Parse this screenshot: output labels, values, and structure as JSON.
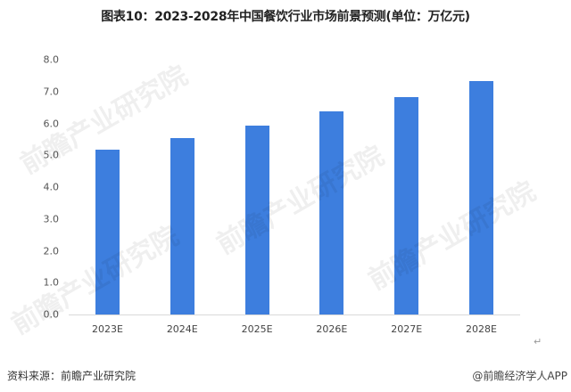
{
  "title": "图表10：2023-2028年中国餐饮行业市场前景预测(单位：万亿元)",
  "source": "资料来源：前瞻产业研究院",
  "credit": "@前瞻经济学人APP",
  "return_mark": "↵",
  "watermark": "前瞻产业研究院",
  "colors": {
    "bar": "#3d7ede",
    "axis": "#d9d9d9"
  },
  "chart_data": {
    "type": "bar",
    "title": "图表10：2023-2028年中国餐饮行业市场前景预测(单位：万亿元)",
    "categories": [
      "2023E",
      "2024E",
      "2025E",
      "2026E",
      "2027E",
      "2028E"
    ],
    "values": [
      5.17,
      5.54,
      5.93,
      6.38,
      6.83,
      7.33
    ],
    "xlabel": "",
    "ylabel": "万亿元",
    "ylim": [
      0,
      8
    ],
    "yticks": [
      "0.0",
      "1.0",
      "2.0",
      "3.0",
      "4.0",
      "5.0",
      "6.0",
      "7.0",
      "8.0"
    ],
    "grid": false,
    "legend": "none"
  }
}
